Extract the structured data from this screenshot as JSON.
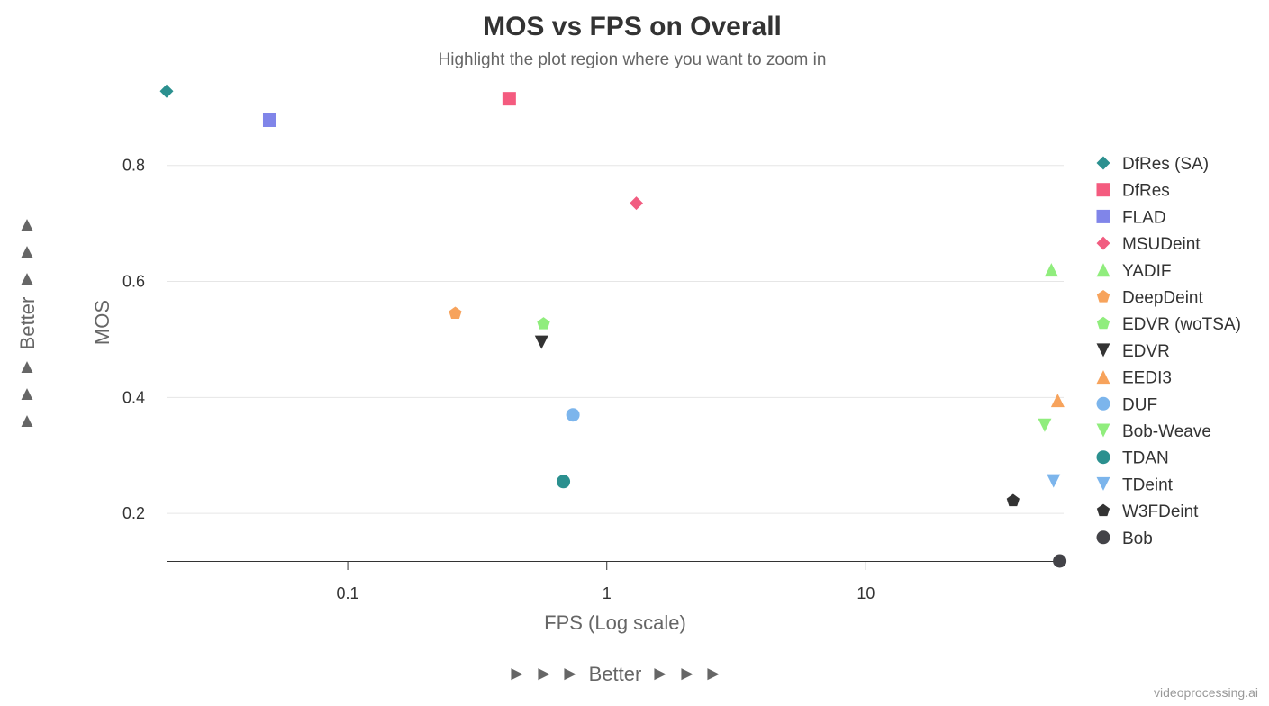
{
  "title": "MOS vs FPS on Overall",
  "subtitle": "Highlight the plot region where you want to zoom in",
  "credit": "videoprocessing.ai",
  "better_x": {
    "arrow": "►",
    "text": "Better"
  },
  "better_y": {
    "arrow": "▲",
    "text": "Better"
  },
  "chart_data": {
    "type": "scatter",
    "title": "MOS vs FPS on Overall",
    "subtitle": "Highlight the plot region where you want to zoom in",
    "xlabel": "FPS (Log scale)",
    "ylabel": "MOS",
    "x_scale": "log",
    "xlim": [
      0.02,
      58
    ],
    "ylim": [
      0.118,
      0.93
    ],
    "x_ticks": [
      0.1,
      1,
      10
    ],
    "x_tick_labels": [
      "0.1",
      "1",
      "10"
    ],
    "y_ticks": [
      0.2,
      0.4,
      0.6,
      0.8
    ],
    "y_tick_labels": [
      "0.2",
      "0.4",
      "0.6",
      "0.8"
    ],
    "grid": "horizontal",
    "legend_position": "right",
    "series": [
      {
        "name": "DfRes (SA)",
        "marker": "diamond",
        "color": "#2b908f",
        "x": 0.02,
        "y": 0.928
      },
      {
        "name": "DfRes",
        "marker": "square",
        "color": "#f45b7f",
        "x": 0.42,
        "y": 0.915
      },
      {
        "name": "FLAD",
        "marker": "square",
        "color": "#8085e9",
        "x": 0.05,
        "y": 0.878
      },
      {
        "name": "MSUDeint",
        "marker": "diamond",
        "color": "#f15c80",
        "x": 1.3,
        "y": 0.735
      },
      {
        "name": "YADIF",
        "marker": "triangle",
        "color": "#90ed7d",
        "x": 52,
        "y": 0.62
      },
      {
        "name": "DeepDeint",
        "marker": "pentagon",
        "color": "#f7a35c",
        "x": 0.26,
        "y": 0.545
      },
      {
        "name": "EDVR (woTSA)",
        "marker": "pentagon",
        "color": "#90ed7d",
        "x": 0.57,
        "y": 0.527
      },
      {
        "name": "EDVR",
        "marker": "triangle-down",
        "color": "#333333",
        "x": 0.56,
        "y": 0.495
      },
      {
        "name": "EEDI3",
        "marker": "triangle",
        "color": "#f7a35c",
        "x": 55,
        "y": 0.395
      },
      {
        "name": "DUF",
        "marker": "circle",
        "color": "#7cb5ec",
        "x": 0.74,
        "y": 0.37
      },
      {
        "name": "Bob-Weave",
        "marker": "triangle-down",
        "color": "#90ed7d",
        "x": 49,
        "y": 0.352
      },
      {
        "name": "TDAN",
        "marker": "circle",
        "color": "#2b908f",
        "x": 0.68,
        "y": 0.255
      },
      {
        "name": "TDeint",
        "marker": "triangle-down",
        "color": "#7cb5ec",
        "x": 53,
        "y": 0.256
      },
      {
        "name": "W3FDeint",
        "marker": "pentagon",
        "color": "#333333",
        "x": 37,
        "y": 0.222
      },
      {
        "name": "Bob",
        "marker": "circle",
        "color": "#434348",
        "x": 56,
        "y": 0.118
      }
    ]
  }
}
